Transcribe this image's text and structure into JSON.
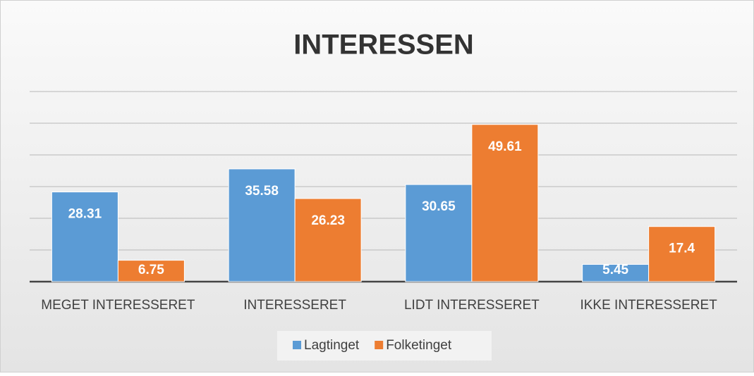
{
  "chart_data": {
    "type": "bar",
    "title": "INTERESSEN",
    "categories": [
      "MEGET INTERESSERET",
      "INTERESSERET",
      "LIDT INTERESSERET",
      "IKKE INTERESSERET"
    ],
    "series": [
      {
        "name": "Lagtinget",
        "color": "#5b9bd5",
        "values": [
          28.31,
          35.58,
          30.65,
          5.45
        ]
      },
      {
        "name": "Folketinget",
        "color": "#ed7d31",
        "values": [
          6.75,
          26.23,
          49.61,
          17.4
        ]
      }
    ],
    "ylim": [
      0,
      60
    ],
    "yticks": [
      0,
      10,
      20,
      30,
      40,
      50,
      60
    ],
    "grid": true,
    "legend": "bottom"
  }
}
